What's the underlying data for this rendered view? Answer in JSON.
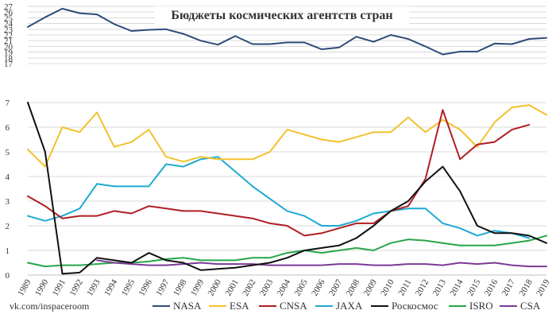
{
  "chart_data": {
    "type": "line",
    "title": "Бюджеты космических агентств стран",
    "credit": "vk.com/inspaceroom",
    "x": [
      "1989",
      "1990",
      "1991",
      "1992",
      "1993",
      "1994",
      "1995",
      "1996",
      "1997",
      "1998",
      "1999",
      "2000",
      "2001",
      "2002",
      "2003",
      "2004",
      "2005",
      "2006",
      "2007",
      "2008",
      "2009",
      "2010",
      "2011",
      "2012",
      "2013",
      "2014",
      "2015",
      "2016",
      "2017",
      "2018",
      "2019"
    ],
    "upper_axis": {
      "ylim": [
        17,
        27
      ],
      "ticks": [
        "17",
        "18",
        "19",
        "20",
        "21",
        "22",
        "23",
        "24",
        "25",
        "26",
        "27"
      ]
    },
    "lower_axis": {
      "ylim": [
        0,
        8
      ],
      "ticks": [
        "0",
        "1",
        "2",
        "3",
        "4",
        "5",
        "6",
        "7"
      ]
    },
    "upper_series": [
      {
        "name": "NASA",
        "color": "#2e4b7a",
        "values": [
          23.4,
          25.1,
          26.6,
          25.8,
          25.6,
          23.9,
          22.7,
          22.9,
          23.0,
          22.2,
          21.0,
          20.3,
          21.8,
          20.4,
          20.4,
          20.7,
          20.7,
          19.5,
          19.8,
          21.7,
          20.8,
          22.0,
          21.3,
          20.0,
          18.6,
          19.1,
          19.1,
          20.5,
          20.4,
          21.3,
          21.5
        ]
      }
    ],
    "series": [
      {
        "name": "ESA",
        "color": "#f2c12e",
        "values": [
          5.1,
          4.4,
          6.0,
          5.8,
          6.6,
          5.2,
          5.4,
          5.9,
          4.8,
          4.6,
          4.8,
          4.7,
          4.7,
          4.7,
          5.0,
          5.9,
          5.7,
          5.5,
          5.4,
          5.6,
          5.8,
          5.8,
          6.4,
          5.8,
          6.3,
          5.9,
          5.2,
          6.2,
          6.8,
          6.9,
          6.5
        ]
      },
      {
        "name": "CNSA",
        "color": "#b01e23",
        "values": [
          3.2,
          2.8,
          2.3,
          2.4,
          2.4,
          2.6,
          2.5,
          2.8,
          2.7,
          2.6,
          2.6,
          2.5,
          2.4,
          2.3,
          2.1,
          2.0,
          1.6,
          1.7,
          1.9,
          2.1,
          2.1,
          2.6,
          2.8,
          3.9,
          6.7,
          4.7,
          5.3,
          5.4,
          5.9,
          6.1,
          null
        ]
      },
      {
        "name": "JAXA",
        "color": "#1fa9d1",
        "values": [
          2.4,
          2.2,
          2.4,
          2.7,
          3.7,
          3.6,
          3.6,
          3.6,
          4.5,
          4.4,
          4.7,
          4.8,
          4.2,
          3.6,
          3.1,
          2.6,
          2.4,
          2.0,
          2.0,
          2.2,
          2.5,
          2.6,
          2.7,
          2.7,
          2.1,
          1.9,
          1.6,
          1.8,
          1.7,
          1.5,
          null
        ]
      },
      {
        "name": "Роскосмос",
        "color": "#111111",
        "values": [
          7.0,
          5.0,
          0.05,
          0.1,
          0.7,
          0.6,
          0.5,
          0.9,
          0.6,
          0.5,
          0.2,
          0.25,
          0.3,
          0.4,
          0.5,
          0.7,
          1.0,
          1.1,
          1.2,
          1.5,
          2.0,
          2.6,
          3.0,
          3.8,
          4.4,
          3.4,
          2.0,
          1.7,
          1.7,
          1.6,
          1.3
        ]
      },
      {
        "name": "ISRO",
        "color": "#27a64a",
        "values": [
          0.5,
          0.35,
          0.4,
          0.4,
          0.45,
          0.5,
          0.5,
          0.55,
          0.65,
          0.7,
          0.6,
          0.6,
          0.6,
          0.7,
          0.7,
          0.9,
          1.0,
          0.9,
          1.0,
          1.1,
          1.0,
          1.3,
          1.45,
          1.4,
          1.3,
          1.2,
          1.2,
          1.2,
          1.3,
          1.4,
          1.6
        ]
      },
      {
        "name": "CSA",
        "color": "#7b3a96",
        "values": [
          null,
          null,
          null,
          null,
          0.6,
          0.5,
          0.45,
          0.4,
          0.4,
          0.45,
          0.5,
          0.45,
          0.45,
          0.45,
          0.4,
          0.4,
          0.4,
          0.4,
          0.45,
          0.45,
          0.4,
          0.4,
          0.45,
          0.45,
          0.4,
          0.5,
          0.45,
          0.5,
          0.4,
          0.35,
          0.35
        ]
      }
    ],
    "legend": [
      "NASA",
      "ESA",
      "CNSA",
      "JAXA",
      "Роскосмос",
      "ISRO",
      "CSA"
    ]
  }
}
